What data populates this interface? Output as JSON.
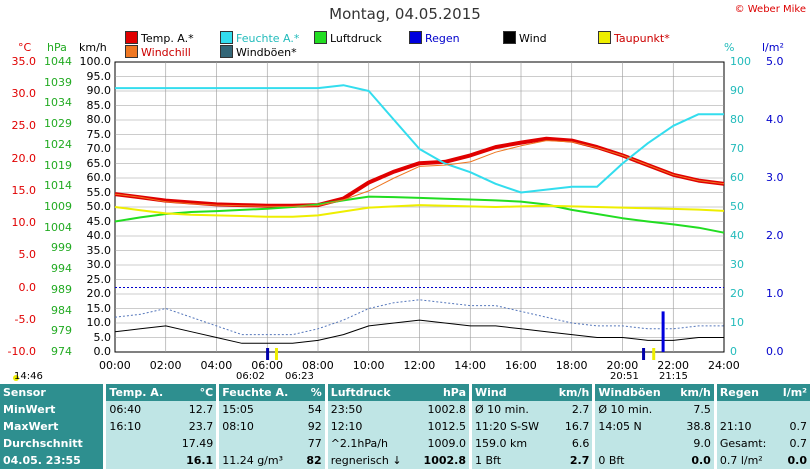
{
  "title": "Montag, 04.05.2015",
  "copyright": "© Weber Mike",
  "legend": [
    {
      "label": "Temp. A.*",
      "color": "#e00000"
    },
    {
      "label": "Feuchte A.*",
      "color": "#33ddee"
    },
    {
      "label": "Luftdruck",
      "color": "#22dd22"
    },
    {
      "label": "Regen",
      "color": "#0000dd"
    },
    {
      "label": "Wind",
      "color": "#000000"
    },
    {
      "label": "Taupunkt*",
      "color": "#eeee00"
    },
    {
      "label": "Windchill",
      "color": "#ee7722"
    },
    {
      "label": "Windböen*",
      "color": "#336677"
    }
  ],
  "units": {
    "temp": "°C",
    "pressure": "hPa",
    "wind": "km/h",
    "humidity": "%",
    "rain": "l/m²"
  },
  "axes": {
    "temp_ticks": [
      "35.0",
      "30.0",
      "25.0",
      "20.0",
      "15.0",
      "10.0",
      "5.0",
      "0.0",
      "-5.0",
      "-10.0"
    ],
    "pressure_ticks": [
      "1044",
      "1039",
      "1034",
      "1029",
      "1024",
      "1019",
      "1014",
      "1009",
      "1004",
      "999",
      "994",
      "989",
      "984",
      "979",
      "974"
    ],
    "wind_ticks": [
      "100.0",
      "95.0",
      "90.0",
      "85.0",
      "80.0",
      "75.0",
      "70.0",
      "65.0",
      "60.0",
      "55.0",
      "50.0",
      "45.0",
      "40.0",
      "35.0",
      "30.0",
      "25.0",
      "20.0",
      "15.0",
      "10.0",
      "5.0",
      "0.0"
    ],
    "humidity_ticks": [
      "100",
      "90",
      "80",
      "70",
      "60",
      "50",
      "40",
      "30",
      "20",
      "10",
      "0"
    ],
    "rain_ticks": [
      "5.0",
      "4.0",
      "3.0",
      "2.0",
      "1.0",
      "0.0"
    ],
    "time_ticks": [
      "00:00",
      "02:00",
      "04:00",
      "06:00",
      "08:00",
      "10:00",
      "12:00",
      "14:00",
      "16:00",
      "18:00",
      "20:00",
      "22:00",
      "24:00"
    ]
  },
  "markers": {
    "left": "14:46",
    "sunrise": "06:02",
    "sunrise2": "06:23",
    "sunset": "20:51",
    "sunset2": "21:15"
  },
  "chart_data": {
    "type": "line",
    "x_hours": [
      0,
      1,
      2,
      3,
      4,
      5,
      6,
      7,
      8,
      9,
      10,
      11,
      12,
      13,
      14,
      15,
      16,
      17,
      18,
      19,
      20,
      21,
      22,
      23,
      24
    ],
    "series": [
      {
        "name": "Temp. A.*",
        "axis": "temp",
        "color": "#e00000",
        "values": [
          14.5,
          14.0,
          13.5,
          13.2,
          12.9,
          12.8,
          12.7,
          12.7,
          12.8,
          13.8,
          16.3,
          18.0,
          19.3,
          19.5,
          20.5,
          21.8,
          22.5,
          23.1,
          22.8,
          21.8,
          20.5,
          19.0,
          17.5,
          16.6,
          16.1
        ]
      },
      {
        "name": "Feuchte A.*",
        "axis": "humidity",
        "color": "#33ddee",
        "values": [
          91,
          91,
          91,
          91,
          91,
          91,
          91,
          91,
          91,
          92,
          90,
          80,
          70,
          65,
          62,
          58,
          55,
          56,
          57,
          57,
          65,
          72,
          78,
          82,
          82
        ]
      },
      {
        "name": "Luftdruck",
        "axis": "pressure",
        "color": "#22dd22",
        "values": [
          1005.5,
          1006.5,
          1007.3,
          1007.8,
          1008.0,
          1008.3,
          1008.6,
          1009.0,
          1009.6,
          1010.6,
          1011.5,
          1011.4,
          1011.2,
          1011.0,
          1010.8,
          1010.6,
          1010.3,
          1009.6,
          1008.3,
          1007.3,
          1006.3,
          1005.5,
          1004.8,
          1004.0,
          1002.8
        ]
      },
      {
        "name": "Taupunkt*",
        "axis": "temp",
        "color": "#eeee00",
        "values": [
          12.5,
          12.0,
          11.5,
          11.3,
          11.2,
          11.1,
          11.0,
          11.0,
          11.2,
          11.8,
          12.4,
          12.6,
          12.8,
          12.7,
          12.6,
          12.5,
          12.6,
          12.7,
          12.6,
          12.5,
          12.4,
          12.3,
          12.2,
          12.1,
          11.9
        ]
      },
      {
        "name": "Windchill",
        "axis": "temp",
        "color": "#ee7722",
        "values": [
          14.5,
          14.0,
          13.3,
          13.0,
          12.8,
          12.7,
          12.6,
          12.6,
          12.7,
          13.6,
          15.0,
          17.0,
          18.8,
          19.0,
          19.5,
          21.0,
          22.0,
          22.8,
          22.6,
          21.7,
          20.5,
          19.0,
          17.5,
          16.6,
          16.1
        ]
      },
      {
        "name": "Wind",
        "axis": "wind",
        "color": "#000000",
        "values": [
          7,
          8,
          9,
          7,
          5,
          3,
          3,
          3,
          4,
          6,
          9,
          10,
          11,
          10,
          9,
          9,
          8,
          7,
          6,
          5,
          5,
          4,
          4,
          5,
          5
        ]
      },
      {
        "name": "Windböen*",
        "axis": "wind",
        "color": "#5577bb",
        "values": [
          12,
          13,
          15,
          12,
          9,
          6,
          6,
          6,
          8,
          11,
          15,
          17,
          18,
          17,
          16,
          16,
          14,
          12,
          10,
          9,
          9,
          8,
          8,
          9,
          9
        ]
      }
    ],
    "rain": [
      {
        "x_hour": 21.6,
        "value": 0.7
      }
    ],
    "ylim_temp": [
      -10,
      35
    ],
    "ylim_pressure": [
      974,
      1044
    ],
    "ylim_wind": [
      0,
      100
    ],
    "ylim_humidity": [
      0,
      100
    ],
    "ylim_rain": [
      0,
      5
    ],
    "grid": true
  },
  "table": {
    "headers": [
      {
        "a": "Sensor",
        "b": ""
      },
      {
        "a": "Temp. A.",
        "b": "°C"
      },
      {
        "a": "Feuchte A.",
        "b": "%"
      },
      {
        "a": "Luftdruck",
        "b": "hPa"
      },
      {
        "a": "Wind",
        "b": "km/h"
      },
      {
        "a": "Windböen",
        "b": "km/h"
      },
      {
        "a": "Regen",
        "b": "l/m²"
      }
    ],
    "rows": [
      {
        "label": "MinWert",
        "cells": [
          [
            "06:40",
            "12.7"
          ],
          [
            "15:05",
            "54"
          ],
          [
            "23:50",
            "1002.8"
          ],
          [
            "Ø 10 min.",
            "2.7"
          ],
          [
            "Ø 10 min.",
            "7.5"
          ],
          [
            "",
            ""
          ]
        ]
      },
      {
        "label": "MaxWert",
        "cells": [
          [
            "16:10",
            "23.7"
          ],
          [
            "08:10",
            "92"
          ],
          [
            "12:10",
            "1012.5"
          ],
          [
            "11:20  S-SW",
            "16.7"
          ],
          [
            "14:05  N",
            "38.8"
          ],
          [
            "21:10",
            "0.7"
          ]
        ]
      },
      {
        "label": "Durchschnitt",
        "cells": [
          [
            "",
            "17.49"
          ],
          [
            "",
            "77"
          ],
          [
            "^2.1hPa/h",
            "1009.0"
          ],
          [
            "159.0 km",
            "6.6"
          ],
          [
            "",
            "9.0"
          ],
          [
            "Gesamt:",
            "0.7"
          ]
        ]
      },
      {
        "label": "04.05. 23:55",
        "cells": [
          [
            "",
            "16.1"
          ],
          [
            "11.24 g/m³",
            "82"
          ],
          [
            "regnerisch ↓",
            "1002.8"
          ],
          [
            "1 Bft",
            "2.7"
          ],
          [
            "0 Bft",
            "0.0"
          ],
          [
            "0.7 l/m²",
            "0.0"
          ]
        ]
      }
    ]
  }
}
